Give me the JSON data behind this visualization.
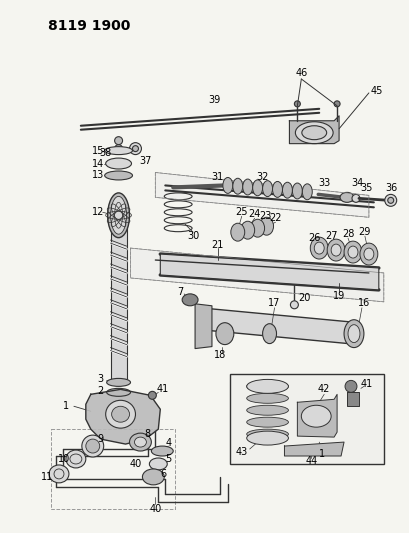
{
  "title": "8119 1900",
  "bg_color": "#f5f5f0",
  "fig_width": 4.1,
  "fig_height": 5.33,
  "dpi": 100,
  "line_color": "#333333",
  "fill_light": "#d8d8d8",
  "fill_mid": "#bbbbbb",
  "fill_dark": "#888888"
}
